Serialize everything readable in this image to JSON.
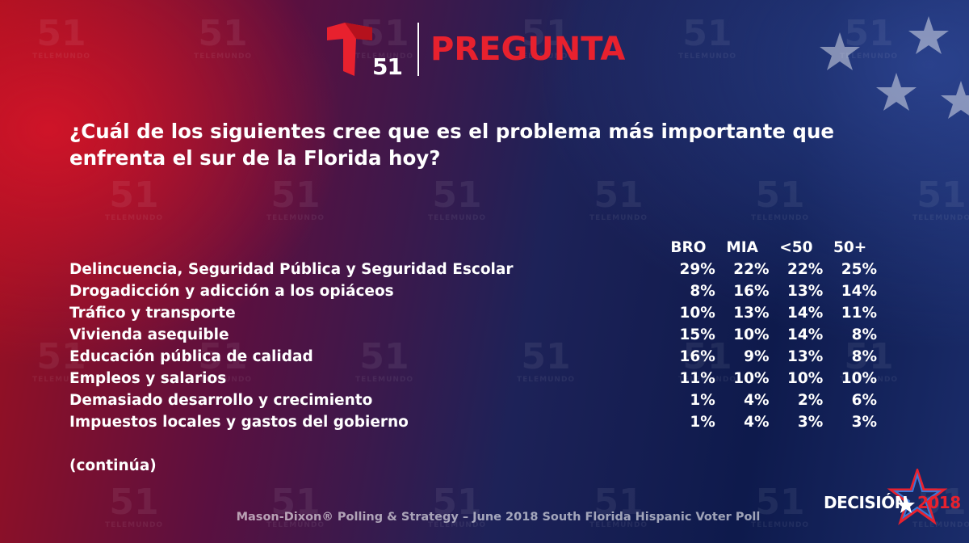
{
  "brand": {
    "logo_number": "51",
    "logo_watermark": "TELEMUNDO",
    "header_title": "PREGUNTA",
    "accent_color": "#e8212e"
  },
  "question": "¿Cuál de los siguientes cree que es el problema más importante que enfrenta el sur de la Florida hoy?",
  "table": {
    "columns": [
      "BRO",
      "MIA",
      "<50",
      "50+"
    ],
    "rows": [
      {
        "label": "Delincuencia, Seguridad Pública y Seguridad Escolar",
        "values": [
          "29%",
          "22%",
          "22%",
          "25%"
        ]
      },
      {
        "label": "Drogadicción y adicción a los opiáceos",
        "values": [
          "8%",
          "16%",
          "13%",
          "14%"
        ]
      },
      {
        "label": "Tráfico y transporte",
        "values": [
          "10%",
          "13%",
          "14%",
          "11%"
        ]
      },
      {
        "label": "Vivienda asequible",
        "values": [
          "15%",
          "10%",
          "14%",
          "8%"
        ]
      },
      {
        "label": "Educación pública de calidad",
        "values": [
          "16%",
          "9%",
          "13%",
          "8%"
        ]
      },
      {
        "label": "Empleos y salarios",
        "values": [
          "11%",
          "10%",
          "10%",
          "10%"
        ]
      },
      {
        "label": "Demasiado desarrollo y crecimiento",
        "values": [
          "1%",
          "4%",
          "2%",
          "6%"
        ]
      },
      {
        "label": "Impuestos locales y gastos del gobierno",
        "values": [
          "1%",
          "4%",
          "3%",
          "3%"
        ]
      }
    ]
  },
  "continued": "(continúa)",
  "footer": "Mason-Dixon® Polling & Strategy – June 2018 South Florida Hispanic Voter Poll",
  "badge": {
    "word": "DECISIÓN",
    "year": "2018"
  }
}
